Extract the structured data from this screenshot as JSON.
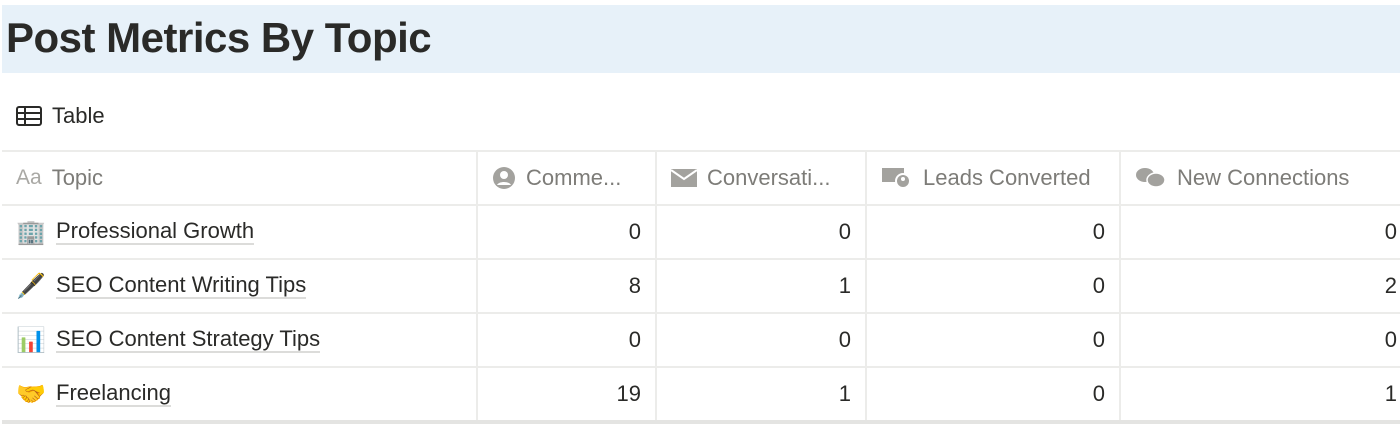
{
  "page": {
    "title": "Post Metrics By Topic"
  },
  "view": {
    "label": "Table",
    "icon": "table-icon"
  },
  "columns": [
    {
      "label": "Topic",
      "icon": "text-property-icon",
      "icon_text": "Aa"
    },
    {
      "label": "Comme...",
      "icon": "person-icon"
    },
    {
      "label": "Conversati...",
      "icon": "envelope-icon"
    },
    {
      "label": "Leads Converted",
      "icon": "money-person-icon"
    },
    {
      "label": "New Connections",
      "icon": "speech-bubbles-icon"
    }
  ],
  "rows": [
    {
      "emoji": "🏢",
      "topic": "Professional Growth",
      "values": [
        "0",
        "0",
        "0",
        "0"
      ]
    },
    {
      "emoji": "🖋️",
      "topic": "SEO Content Writing Tips",
      "values": [
        "8",
        "1",
        "0",
        "2"
      ]
    },
    {
      "emoji": "📊",
      "topic": "SEO Content Strategy Tips",
      "values": [
        "0",
        "0",
        "0",
        "0"
      ]
    },
    {
      "emoji": "🤝",
      "topic": "Freelancing",
      "values": [
        "19",
        "1",
        "0",
        "1"
      ]
    }
  ]
}
